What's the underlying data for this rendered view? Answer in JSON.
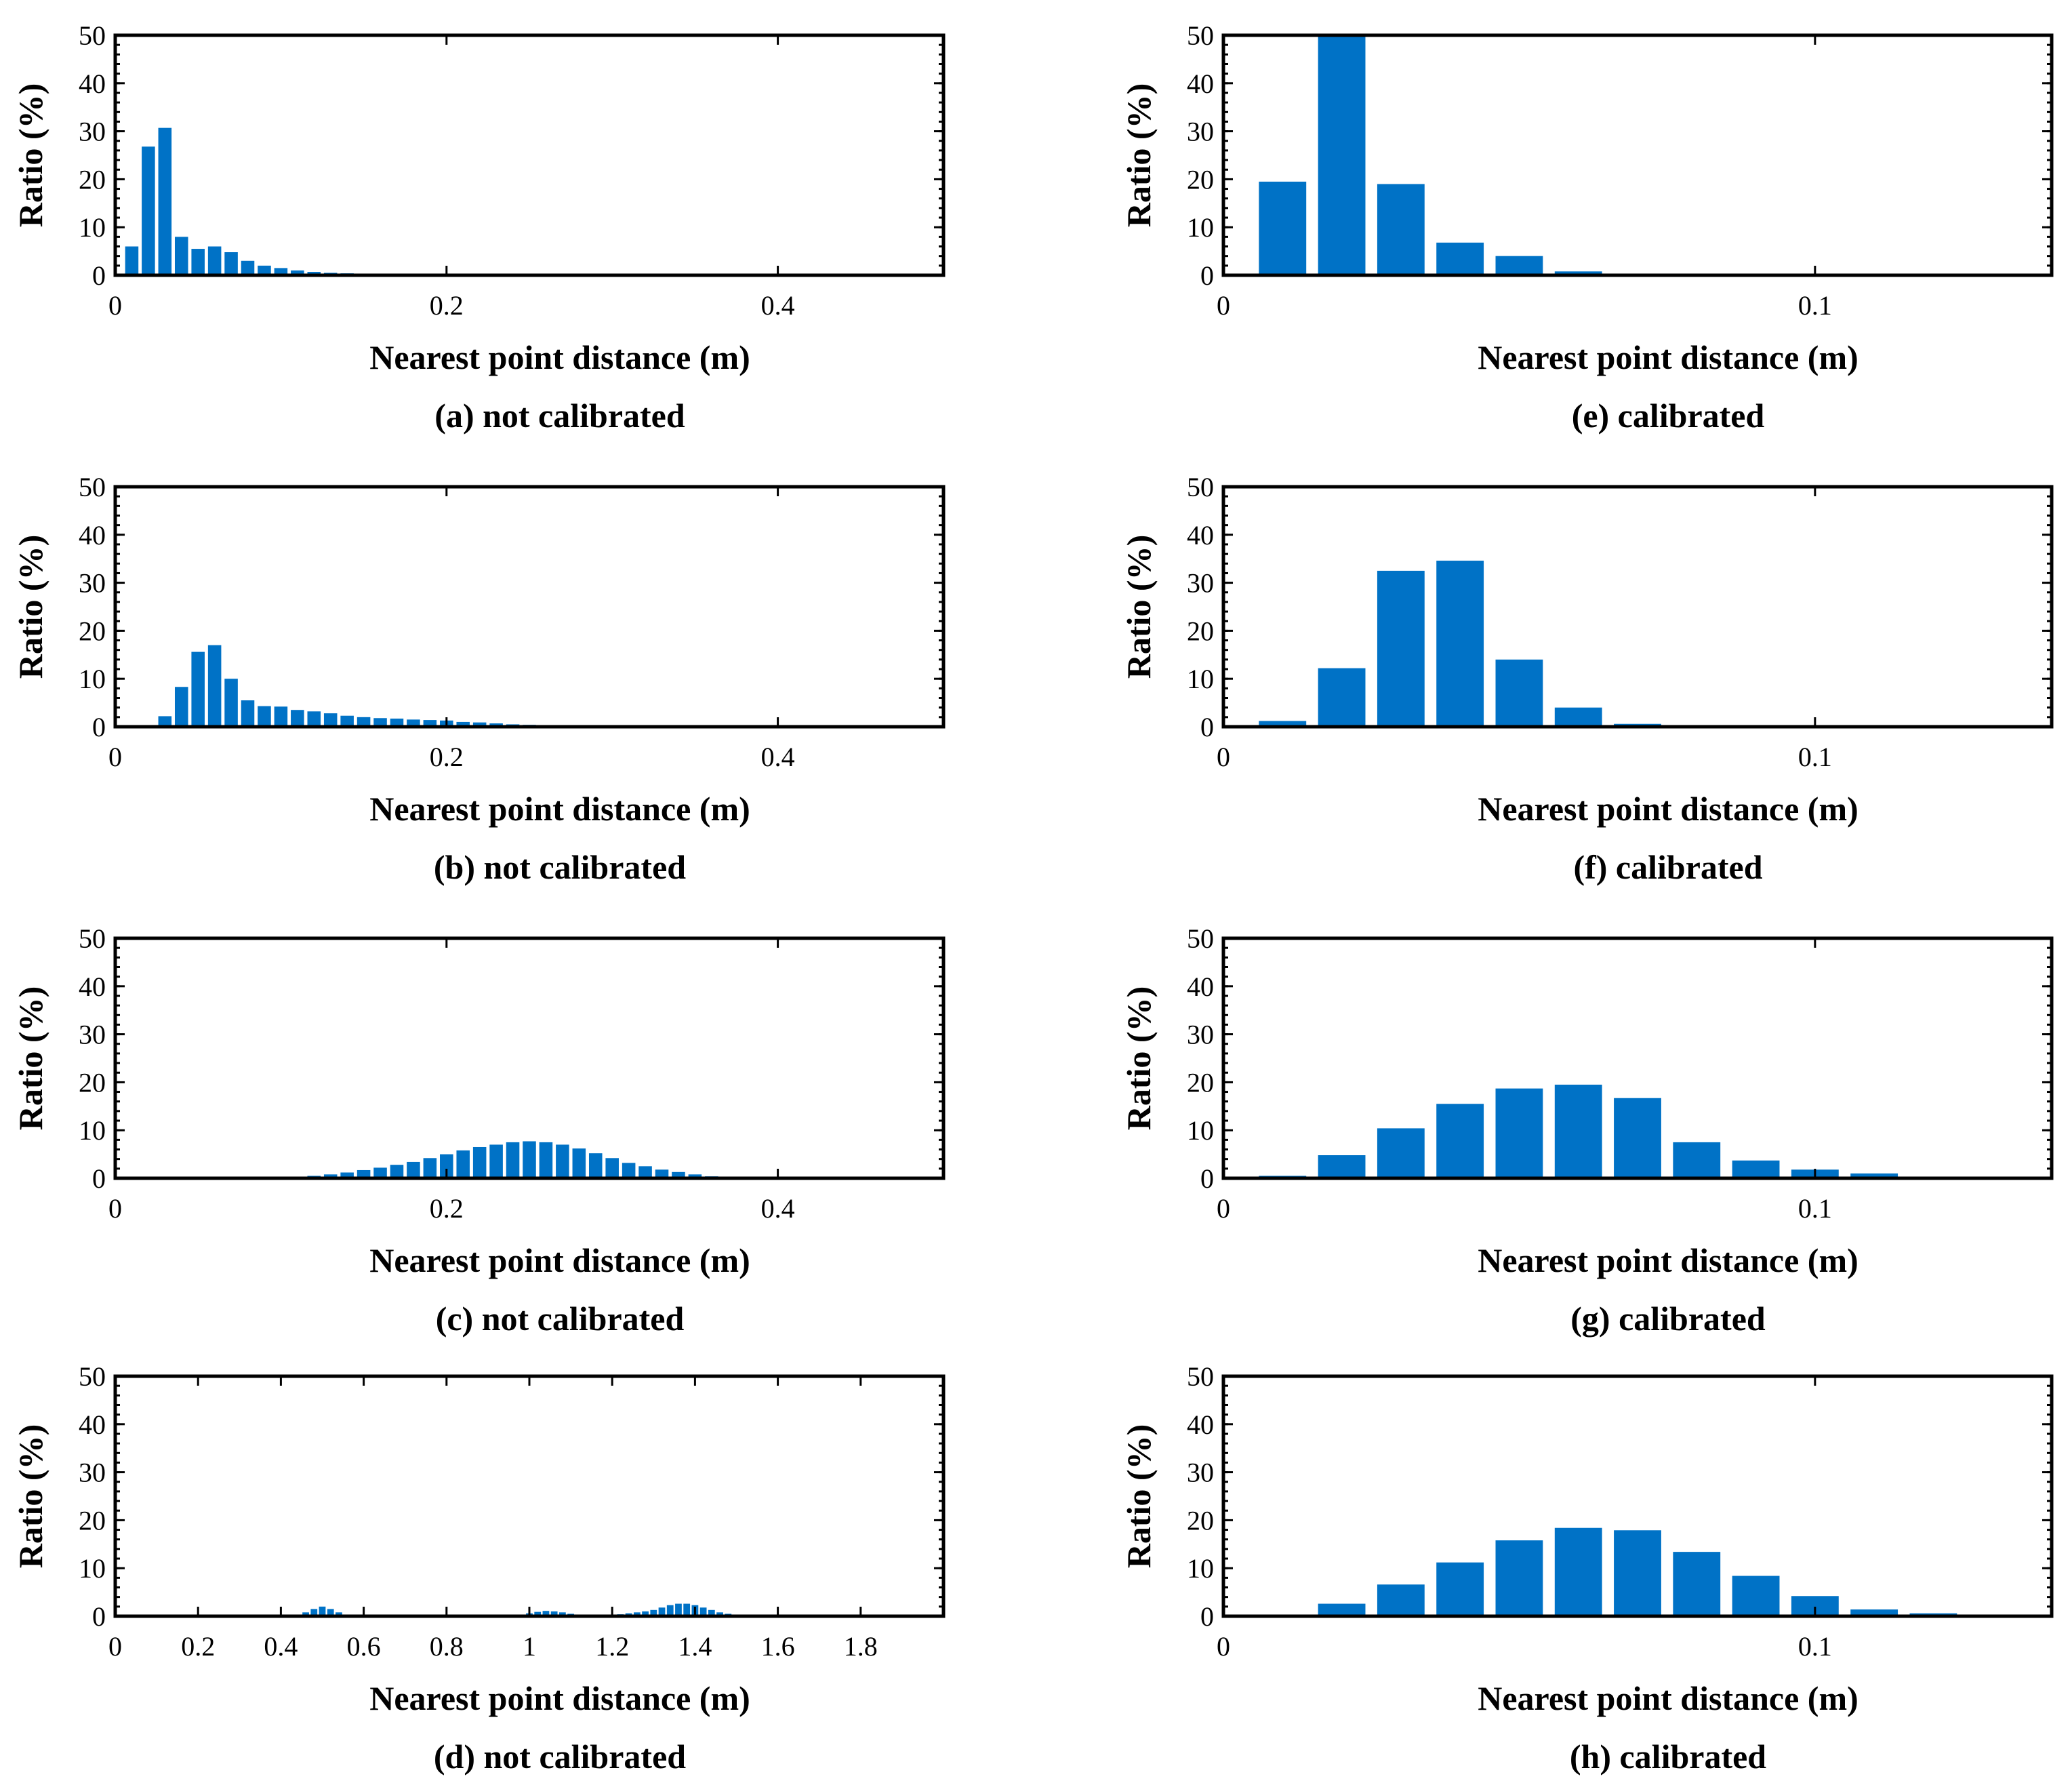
{
  "colors": {
    "bar": "#0072C6",
    "axis": "#000000",
    "background": "#ffffff"
  },
  "chart_data": [
    {
      "id": "a",
      "type": "bar",
      "caption": "(a) not calibrated",
      "xlabel": "Nearest point distance (m)",
      "ylabel": "Ratio (%)",
      "xlim": [
        0,
        0.5
      ],
      "ylim": [
        0,
        50
      ],
      "xticks": [
        0,
        0.2,
        0.4
      ],
      "xtick_labels": [
        "0",
        "0.2",
        "0.4"
      ],
      "yticks": [
        0,
        10,
        20,
        30,
        40,
        50
      ],
      "ytick_labels": [
        "0",
        "10",
        "20",
        "30",
        "40",
        "50"
      ],
      "bin_width": 0.01,
      "bar_fraction": 0.8,
      "x": [
        0.01,
        0.02,
        0.03,
        0.04,
        0.05,
        0.06,
        0.07,
        0.08,
        0.09,
        0.1,
        0.11,
        0.12,
        0.13,
        0.14,
        0.15,
        0.16,
        0.17
      ],
      "values": [
        6,
        26.8,
        30.7,
        8,
        5.5,
        6,
        4.8,
        3,
        2,
        1.5,
        1,
        0.7,
        0.5,
        0.4,
        0.3,
        0.2,
        0.1
      ]
    },
    {
      "id": "e",
      "type": "bar",
      "caption": "(e) calibrated",
      "xlabel": "Nearest point distance (m)",
      "ylabel": "Ratio (%)",
      "xlim": [
        0,
        0.14
      ],
      "ylim": [
        0,
        50
      ],
      "xticks": [
        0,
        0.1
      ],
      "xtick_labels": [
        "0",
        "0.1"
      ],
      "yticks": [
        0,
        10,
        20,
        30,
        40,
        50
      ],
      "ytick_labels": [
        "0",
        "10",
        "20",
        "30",
        "40",
        "50"
      ],
      "bin_width": 0.01,
      "bar_fraction": 0.8,
      "x": [
        0.01,
        0.02,
        0.03,
        0.04,
        0.05,
        0.06
      ],
      "values": [
        19.5,
        50,
        19,
        6.8,
        4,
        0.8
      ]
    },
    {
      "id": "b",
      "type": "bar",
      "caption": "(b) not calibrated",
      "xlabel": "Nearest point distance (m)",
      "ylabel": "Ratio (%)",
      "xlim": [
        0,
        0.5
      ],
      "ylim": [
        0,
        50
      ],
      "xticks": [
        0,
        0.2,
        0.4
      ],
      "xtick_labels": [
        "0",
        "0.2",
        "0.4"
      ],
      "yticks": [
        0,
        10,
        20,
        30,
        40,
        50
      ],
      "ytick_labels": [
        "0",
        "10",
        "20",
        "30",
        "40",
        "50"
      ],
      "bin_width": 0.01,
      "bar_fraction": 0.8,
      "x": [
        0.03,
        0.04,
        0.05,
        0.06,
        0.07,
        0.08,
        0.09,
        0.1,
        0.11,
        0.12,
        0.13,
        0.14,
        0.15,
        0.16,
        0.17,
        0.18,
        0.19,
        0.2,
        0.21,
        0.22,
        0.23,
        0.24,
        0.25,
        0.26,
        0.27
      ],
      "values": [
        2.2,
        8.3,
        15.6,
        17,
        10,
        5.5,
        4.3,
        4.2,
        3.5,
        3.2,
        2.8,
        2.3,
        2,
        1.8,
        1.7,
        1.5,
        1.4,
        1.3,
        1.0,
        0.9,
        0.7,
        0.5,
        0.4,
        0.3,
        0.2
      ]
    },
    {
      "id": "f",
      "type": "bar",
      "caption": "(f) calibrated",
      "xlabel": "Nearest point distance (m)",
      "ylabel": "Ratio (%)",
      "xlim": [
        0,
        0.14
      ],
      "ylim": [
        0,
        50
      ],
      "xticks": [
        0,
        0.1
      ],
      "xtick_labels": [
        "0",
        "0.1"
      ],
      "yticks": [
        0,
        10,
        20,
        30,
        40,
        50
      ],
      "ytick_labels": [
        "0",
        "10",
        "20",
        "30",
        "40",
        "50"
      ],
      "bin_width": 0.01,
      "bar_fraction": 0.8,
      "x": [
        0.01,
        0.02,
        0.03,
        0.04,
        0.05,
        0.06,
        0.07,
        0.08
      ],
      "values": [
        1.2,
        12.2,
        32.5,
        34.6,
        14,
        4,
        0.6,
        0.3
      ]
    },
    {
      "id": "c",
      "type": "bar",
      "caption": "(c) not calibrated",
      "xlabel": "Nearest point distance (m)",
      "ylabel": "Ratio (%)",
      "xlim": [
        0,
        0.5
      ],
      "ylim": [
        0,
        50
      ],
      "xticks": [
        0,
        0.2,
        0.4
      ],
      "xtick_labels": [
        "0",
        "0.2",
        "0.4"
      ],
      "yticks": [
        0,
        10,
        20,
        30,
        40,
        50
      ],
      "ytick_labels": [
        "0",
        "10",
        "20",
        "30",
        "40",
        "50"
      ],
      "bin_width": 0.01,
      "bar_fraction": 0.8,
      "x": [
        0.12,
        0.13,
        0.14,
        0.15,
        0.16,
        0.17,
        0.18,
        0.19,
        0.2,
        0.21,
        0.22,
        0.23,
        0.24,
        0.25,
        0.26,
        0.27,
        0.28,
        0.29,
        0.3,
        0.31,
        0.32,
        0.33,
        0.34,
        0.35,
        0.36
      ],
      "values": [
        0.5,
        0.8,
        1.2,
        1.7,
        2.2,
        2.8,
        3.4,
        4.2,
        5,
        5.8,
        6.5,
        7,
        7.5,
        7.7,
        7.5,
        7,
        6.2,
        5.2,
        4.2,
        3.2,
        2.5,
        1.8,
        1.3,
        0.8,
        0.4
      ]
    },
    {
      "id": "g",
      "type": "bar",
      "caption": "(g) calibrated",
      "xlabel": "Nearest point distance (m)",
      "ylabel": "Ratio (%)",
      "xlim": [
        0,
        0.14
      ],
      "ylim": [
        0,
        50
      ],
      "xticks": [
        0,
        0.1
      ],
      "xtick_labels": [
        "0",
        "0.1"
      ],
      "yticks": [
        0,
        10,
        20,
        30,
        40,
        50
      ],
      "ytick_labels": [
        "0",
        "10",
        "20",
        "30",
        "40",
        "50"
      ],
      "bin_width": 0.01,
      "bar_fraction": 0.8,
      "x": [
        0.01,
        0.02,
        0.03,
        0.04,
        0.05,
        0.06,
        0.07,
        0.08,
        0.09,
        0.1,
        0.11
      ],
      "values": [
        0.5,
        4.8,
        10.4,
        15.5,
        18.7,
        19.5,
        16.7,
        7.5,
        3.7,
        1.8,
        1.0
      ]
    },
    {
      "id": "d",
      "type": "bar",
      "caption": "(d) not calibrated",
      "xlabel": "Nearest point distance (m)",
      "ylabel": "Ratio (%)",
      "xlim": [
        0,
        2
      ],
      "ylim": [
        0,
        50
      ],
      "xticks": [
        0,
        0.2,
        0.4,
        0.6,
        0.8,
        1,
        1.2,
        1.4,
        1.6,
        1.8
      ],
      "xtick_labels": [
        "0",
        "0.2",
        "0.4",
        "0.6",
        "0.8",
        "1",
        "1.2",
        "1.4",
        "1.6",
        "1.8"
      ],
      "yticks": [
        0,
        10,
        20,
        30,
        40,
        50
      ],
      "ytick_labels": [
        "0",
        "10",
        "20",
        "30",
        "40",
        "50"
      ],
      "bin_width": 0.02,
      "bar_fraction": 0.8,
      "x": [
        0.44,
        0.46,
        0.48,
        0.5,
        0.52,
        0.54,
        0.56,
        0.98,
        1.0,
        1.02,
        1.04,
        1.06,
        1.08,
        1.1,
        1.12,
        1.2,
        1.22,
        1.24,
        1.26,
        1.28,
        1.3,
        1.32,
        1.34,
        1.36,
        1.38,
        1.4,
        1.42,
        1.44,
        1.46,
        1.48,
        1.5
      ],
      "values": [
        0.3,
        0.8,
        1.5,
        2,
        1.5,
        0.8,
        0.3,
        0.3,
        0.6,
        0.9,
        1.1,
        1.0,
        0.8,
        0.5,
        0.3,
        0.3,
        0.4,
        0.6,
        0.8,
        1.0,
        1.3,
        1.8,
        2.3,
        2.6,
        2.6,
        2.3,
        1.8,
        1.3,
        0.8,
        0.5,
        0.3
      ]
    },
    {
      "id": "h",
      "type": "bar",
      "caption": "(h) calibrated",
      "xlabel": "Nearest point distance (m)",
      "ylabel": "Ratio (%)",
      "xlim": [
        0,
        0.14
      ],
      "ylim": [
        0,
        50
      ],
      "xticks": [
        0,
        0.1
      ],
      "xtick_labels": [
        "0",
        "0.1"
      ],
      "yticks": [
        0,
        10,
        20,
        30,
        40,
        50
      ],
      "ytick_labels": [
        "0",
        "10",
        "20",
        "30",
        "40",
        "50"
      ],
      "bin_width": 0.01,
      "bar_fraction": 0.8,
      "x": [
        0.02,
        0.03,
        0.04,
        0.05,
        0.06,
        0.07,
        0.08,
        0.09,
        0.1,
        0.11,
        0.12
      ],
      "values": [
        2.6,
        6.6,
        11.2,
        15.8,
        18.4,
        17.9,
        13.4,
        8.4,
        4.2,
        1.4,
        0.6
      ]
    }
  ]
}
